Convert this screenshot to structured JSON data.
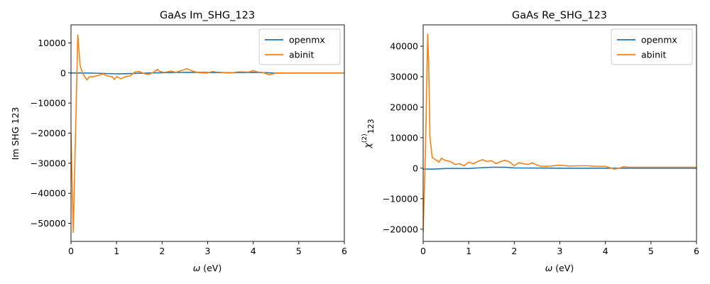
{
  "chart_data": [
    {
      "type": "line",
      "title": "GaAs Im_SHG_123",
      "xlabel_symbol": "ω",
      "xlabel_unit": " (eV)",
      "ylabel": "Im SHG 123",
      "xlim": [
        0,
        6
      ],
      "ylim": [
        -56000,
        16000
      ],
      "x_ticks": [
        0,
        1,
        2,
        3,
        4,
        5,
        6
      ],
      "y_ticks": [
        -50000,
        -40000,
        -30000,
        -20000,
        -10000,
        0,
        10000
      ],
      "legend_position": "upper right",
      "series": [
        {
          "name": "openmx",
          "color": "#1f77b4",
          "x": [
            0,
            0.5,
            1.0,
            1.2,
            1.5,
            2.0,
            2.5,
            3.0,
            3.5,
            4.0,
            4.3,
            4.5,
            5.0,
            5.5,
            6.0
          ],
          "y": [
            0,
            -50,
            -300,
            -250,
            -100,
            100,
            200,
            150,
            100,
            200,
            100,
            -50,
            0,
            0,
            0
          ]
        },
        {
          "name": "abinit",
          "color": "#ff7f0e",
          "x": [
            0.0,
            0.05,
            0.1,
            0.15,
            0.2,
            0.25,
            0.3,
            0.35,
            0.4,
            0.5,
            0.6,
            0.7,
            0.8,
            0.9,
            0.95,
            1.0,
            1.1,
            1.2,
            1.3,
            1.4,
            1.5,
            1.6,
            1.7,
            1.8,
            1.9,
            1.95,
            2.05,
            2.2,
            2.3,
            2.4,
            2.5,
            2.55,
            2.65,
            2.8,
            3.0,
            3.1,
            3.2,
            3.3,
            3.5,
            3.7,
            3.9,
            4.0,
            4.1,
            4.2,
            4.35,
            4.5,
            5.0,
            5.5,
            6.0
          ],
          "y": [
            -20000,
            -53000,
            -20000,
            12700,
            2500,
            200,
            -1200,
            -2300,
            -1300,
            -1200,
            -800,
            -300,
            -1000,
            -1200,
            -2200,
            -1200,
            -1900,
            -1200,
            -1000,
            300,
            500,
            -200,
            -500,
            100,
            1200,
            500,
            200,
            600,
            200,
            700,
            1200,
            1400,
            700,
            100,
            0,
            500,
            300,
            200,
            0,
            400,
            300,
            800,
            300,
            200,
            -600,
            0,
            0,
            0,
            0
          ]
        }
      ]
    },
    {
      "type": "line",
      "title": "GaAs Re_SHG_123",
      "xlabel_symbol": "ω",
      "xlabel_unit": " (eV)",
      "ylabel_main": "χ",
      "ylabel_sup": "(2)",
      "ylabel_sub": "123",
      "xlim": [
        0,
        6
      ],
      "ylim": [
        -24000,
        47000
      ],
      "x_ticks": [
        0,
        1,
        2,
        3,
        4,
        5,
        6
      ],
      "y_ticks": [
        -20000,
        -10000,
        0,
        10000,
        20000,
        30000,
        40000
      ],
      "legend_position": "upper right",
      "series": [
        {
          "name": "openmx",
          "color": "#1f77b4",
          "x": [
            0,
            0.2,
            0.5,
            1.0,
            1.2,
            1.5,
            1.8,
            2.0,
            2.5,
            3.0,
            3.5,
            4.0,
            4.5,
            5.0,
            5.5,
            6.0
          ],
          "y": [
            -300,
            -300,
            -100,
            -100,
            100,
            300,
            300,
            100,
            50,
            0,
            0,
            0,
            0,
            0,
            0,
            0
          ]
        },
        {
          "name": "abinit",
          "color": "#ff7f0e",
          "x": [
            0.0,
            0.05,
            0.1,
            0.12,
            0.15,
            0.2,
            0.3,
            0.35,
            0.4,
            0.45,
            0.5,
            0.6,
            0.7,
            0.8,
            0.9,
            1.0,
            1.1,
            1.2,
            1.3,
            1.4,
            1.5,
            1.6,
            1.7,
            1.8,
            1.9,
            2.0,
            2.1,
            2.2,
            2.3,
            2.4,
            2.5,
            2.6,
            2.8,
            3.0,
            3.2,
            3.4,
            3.6,
            3.8,
            4.0,
            4.2,
            4.3,
            4.4,
            4.5,
            5.0,
            5.5,
            6.0
          ],
          "y": [
            -21000,
            5000,
            44000,
            35000,
            10000,
            3500,
            2500,
            2000,
            3300,
            2800,
            2500,
            2200,
            1200,
            1500,
            800,
            2000,
            1500,
            2200,
            2800,
            2200,
            2500,
            1500,
            2200,
            2600,
            2000,
            800,
            1800,
            1500,
            1200,
            1800,
            1000,
            600,
            700,
            1000,
            700,
            800,
            800,
            600,
            600,
            -300,
            0,
            500,
            300,
            300,
            300,
            300
          ]
        }
      ]
    }
  ]
}
